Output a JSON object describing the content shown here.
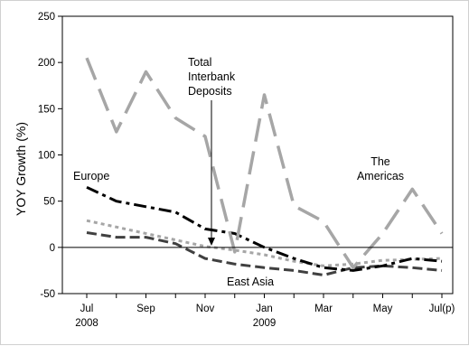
{
  "chart_data": {
    "type": "line",
    "ylabel": "YOY Growth (%)",
    "ylim": [
      -50,
      250
    ],
    "yticks": [
      "-50",
      "0",
      "50",
      "100",
      "150",
      "200",
      "250"
    ],
    "x": [
      "2008-07",
      "2008-08",
      "2008-09",
      "2008-10",
      "2008-11",
      "2008-12",
      "2009-01",
      "2009-02",
      "2009-03",
      "2009-04",
      "2009-05",
      "2009-06",
      "2009-07"
    ],
    "xtick_labels": [
      "Jul",
      "Sep",
      "Nov",
      "Jan",
      "Mar",
      "May",
      "Jul(p)"
    ],
    "xtick_years": [
      "2008",
      "2009"
    ],
    "grid": false,
    "series": [
      {
        "name": "The Americas",
        "color": "#a6a6a6",
        "dash": "long-dash",
        "values": [
          205,
          125,
          190,
          140,
          120,
          -5,
          165,
          45,
          28,
          -22,
          15,
          63,
          15
        ]
      },
      {
        "name": "Europe",
        "color": "#000000",
        "dash": "dash-dot",
        "values": [
          65,
          50,
          44,
          38,
          20,
          15,
          0,
          -12,
          -22,
          -25,
          -20,
          -12,
          -15
        ]
      },
      {
        "name": "East Asia",
        "color": "#404040",
        "dash": "dash",
        "values": [
          16,
          11,
          11,
          4,
          -12,
          -18,
          -22,
          -25,
          -30,
          -22,
          -20,
          -22,
          -25
        ]
      },
      {
        "name": "Total Interbank Deposits",
        "color": "#a6a6a6",
        "dash": "dot",
        "values": [
          29,
          22,
          15,
          8,
          1,
          -3,
          -8,
          -15,
          -20,
          -18,
          -14,
          -13,
          -12
        ]
      }
    ],
    "annotations": {
      "europe": "Europe",
      "east_asia": "East Asia",
      "americas_line1": "The",
      "americas_line2": "Americas",
      "total_line1": "Total",
      "total_line2": "Interbank",
      "total_line3": "Deposits"
    }
  }
}
